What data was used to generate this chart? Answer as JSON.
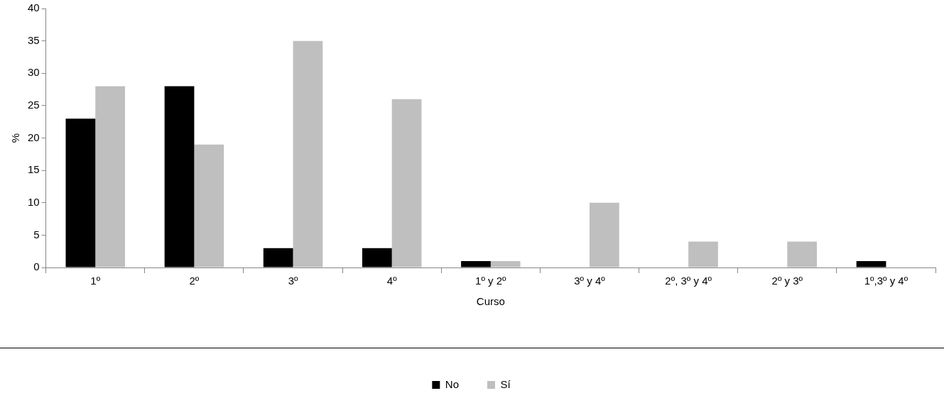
{
  "chart_data": {
    "type": "bar",
    "xlabel": "Curso",
    "ylabel": "%",
    "categories": [
      "1º",
      "2º",
      "3º",
      "4º",
      "1º y 2º",
      "3º y 4º",
      "2º, 3º y 4º",
      "2º y 3º",
      "1º,3º y 4º"
    ],
    "series": [
      {
        "name": "No",
        "color": "#000000",
        "values": [
          23,
          28,
          3,
          3,
          1,
          0,
          0,
          0,
          1
        ]
      },
      {
        "name": "Sí",
        "color": "#bfbfbf",
        "values": [
          28,
          19,
          35,
          26,
          1,
          10,
          4,
          4,
          0
        ]
      }
    ],
    "ylim": [
      0,
      40
    ],
    "yticks": [
      0,
      5,
      10,
      15,
      20,
      25,
      30,
      35,
      40
    ],
    "grid": false,
    "legend": "bottom"
  }
}
